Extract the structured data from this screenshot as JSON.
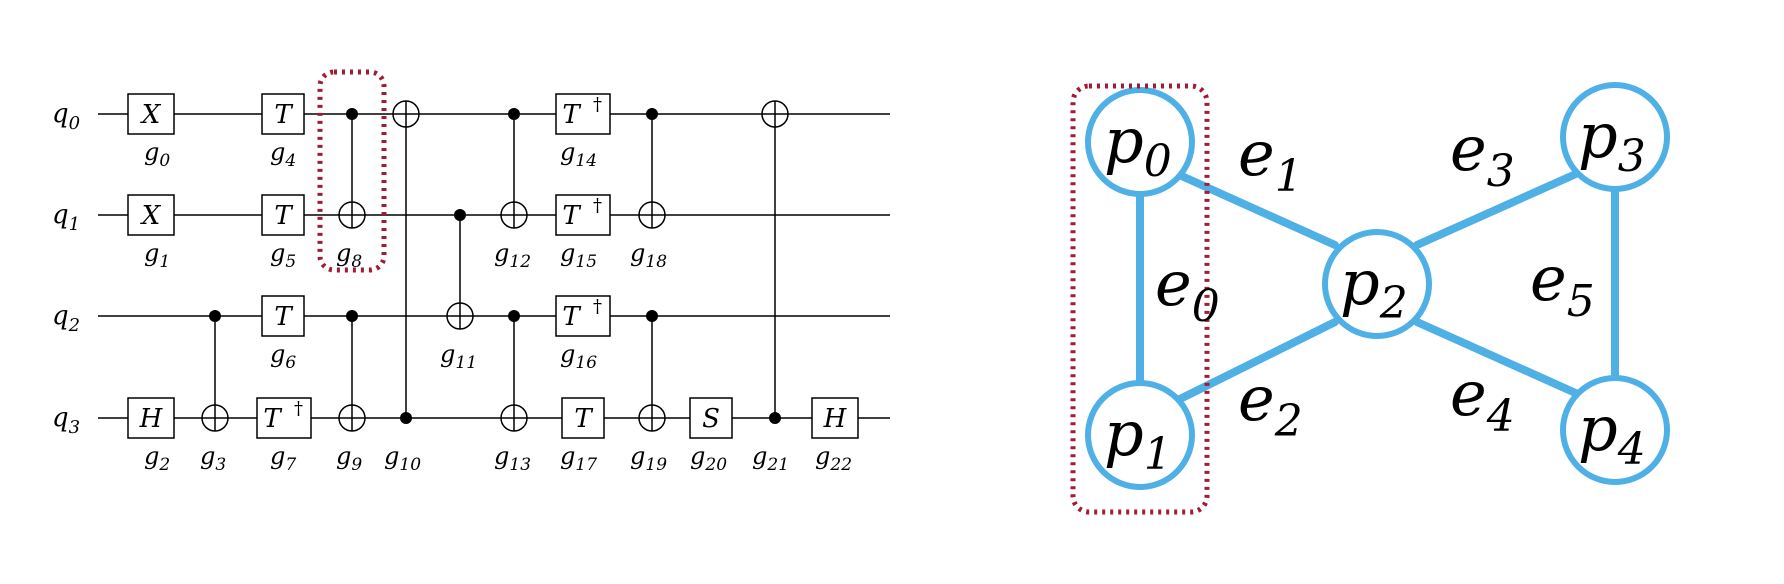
{
  "circuit": {
    "qubits": [
      {
        "name": "q",
        "sub": "0"
      },
      {
        "name": "q",
        "sub": "1"
      },
      {
        "name": "q",
        "sub": "2"
      },
      {
        "name": "q",
        "sub": "3"
      }
    ],
    "single_gates": [
      {
        "label": "X",
        "dagger": false,
        "qubit": 0,
        "gname": "g",
        "gsub": "0"
      },
      {
        "label": "X",
        "dagger": false,
        "qubit": 1,
        "gname": "g",
        "gsub": "1"
      },
      {
        "label": "H",
        "dagger": false,
        "qubit": 3,
        "gname": "g",
        "gsub": "2"
      },
      {
        "label": "T",
        "dagger": false,
        "qubit": 0,
        "gname": "g",
        "gsub": "4"
      },
      {
        "label": "T",
        "dagger": false,
        "qubit": 1,
        "gname": "g",
        "gsub": "5"
      },
      {
        "label": "T",
        "dagger": false,
        "qubit": 2,
        "gname": "g",
        "gsub": "6"
      },
      {
        "label": "T",
        "dagger": true,
        "qubit": 3,
        "gname": "g",
        "gsub": "7"
      },
      {
        "label": "T",
        "dagger": true,
        "qubit": 0,
        "gname": "g",
        "gsub": "14"
      },
      {
        "label": "T",
        "dagger": true,
        "qubit": 1,
        "gname": "g",
        "gsub": "15"
      },
      {
        "label": "T",
        "dagger": true,
        "qubit": 2,
        "gname": "g",
        "gsub": "16"
      },
      {
        "label": "T",
        "dagger": false,
        "qubit": 3,
        "gname": "g",
        "gsub": "17"
      },
      {
        "label": "S",
        "dagger": false,
        "qubit": 3,
        "gname": "g",
        "gsub": "20"
      },
      {
        "label": "H",
        "dagger": false,
        "qubit": 3,
        "gname": "g",
        "gsub": "22"
      }
    ],
    "cnot_gates": [
      {
        "control": 2,
        "target": 3,
        "gname": "g",
        "gsub": "3"
      },
      {
        "control": 0,
        "target": 1,
        "gname": "g",
        "gsub": "8"
      },
      {
        "control": 2,
        "target": 3,
        "gname": "g",
        "gsub": "9"
      },
      {
        "control": 3,
        "target": 0,
        "gname": "g",
        "gsub": "10"
      },
      {
        "control": 1,
        "target": 2,
        "gname": "g",
        "gsub": "11"
      },
      {
        "control": 0,
        "target": 1,
        "gname": "g",
        "gsub": "12"
      },
      {
        "control": 2,
        "target": 3,
        "gname": "g",
        "gsub": "13"
      },
      {
        "control": 0,
        "target": 1,
        "gname": "g",
        "gsub": "18"
      },
      {
        "control": 2,
        "target": 3,
        "gname": "g",
        "gsub": "19"
      },
      {
        "control": 3,
        "target": 0,
        "gname": "g",
        "gsub": "21"
      }
    ],
    "highlighted_gate": "g8"
  },
  "graph": {
    "nodes": [
      {
        "name": "p",
        "sub": "0"
      },
      {
        "name": "p",
        "sub": "1"
      },
      {
        "name": "p",
        "sub": "2"
      },
      {
        "name": "p",
        "sub": "3"
      },
      {
        "name": "p",
        "sub": "4"
      }
    ],
    "edges": [
      {
        "name": "e",
        "sub": "0",
        "from": "p0",
        "to": "p1"
      },
      {
        "name": "e",
        "sub": "1",
        "from": "p0",
        "to": "p2"
      },
      {
        "name": "e",
        "sub": "2",
        "from": "p1",
        "to": "p2"
      },
      {
        "name": "e",
        "sub": "3",
        "from": "p2",
        "to": "p3"
      },
      {
        "name": "e",
        "sub": "4",
        "from": "p2",
        "to": "p4"
      },
      {
        "name": "e",
        "sub": "5",
        "from": "p3",
        "to": "p4"
      }
    ],
    "highlighted_nodes": [
      "p0",
      "p1"
    ],
    "colors": {
      "edge": "#4fb0e6",
      "node_stroke": "#4fb0e6",
      "highlight": "#a31a35"
    }
  }
}
